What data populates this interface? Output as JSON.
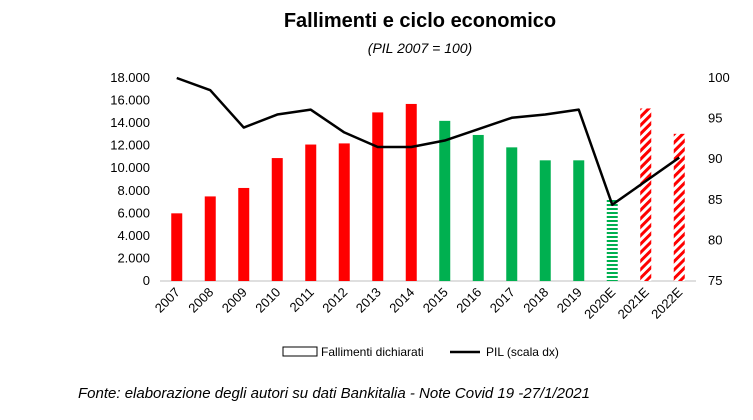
{
  "chart_data": {
    "type": "bar",
    "title": "Fallimenti e ciclo economico",
    "subtitle": "(PIL 2007 = 100)",
    "categories": [
      "2007",
      "2008",
      "2009",
      "2010",
      "2011",
      "2012",
      "2013",
      "2014",
      "2015",
      "2016",
      "2017",
      "2018",
      "2019",
      "2020E",
      "2021E",
      "2022E"
    ],
    "series": [
      {
        "name": "Fallimenti dichiarati",
        "kind": "bar",
        "axis": "left",
        "values": [
          6000,
          7500,
          8250,
          10900,
          12100,
          12200,
          14950,
          15700,
          14200,
          12950,
          11850,
          10700,
          10700,
          7250,
          15300,
          13050
        ],
        "colors": [
          "#ff0000",
          "#ff0000",
          "#ff0000",
          "#ff0000",
          "#ff0000",
          "#ff0000",
          "#ff0000",
          "#ff0000",
          "#00b050",
          "#00b050",
          "#00b050",
          "#00b050",
          "#00b050",
          "#00b050",
          "#ff0000",
          "#ff0000"
        ],
        "patterns": [
          "solid",
          "solid",
          "solid",
          "solid",
          "solid",
          "solid",
          "solid",
          "solid",
          "solid",
          "solid",
          "solid",
          "solid",
          "solid",
          "horizontal-stripes",
          "diagonal-stripes",
          "diagonal-stripes"
        ]
      },
      {
        "name": "PIL (scala dx)",
        "kind": "line",
        "axis": "right",
        "color": "#000000",
        "values": [
          100,
          98.5,
          93.9,
          95.5,
          96.1,
          93.3,
          91.5,
          91.5,
          92.3,
          93.7,
          95.1,
          95.5,
          96.1,
          84.4,
          87.3,
          90.2
        ]
      }
    ],
    "y_left": {
      "ylim": [
        0,
        18000
      ],
      "ticks": [
        0,
        2000,
        4000,
        6000,
        8000,
        10000,
        12000,
        14000,
        16000,
        18000
      ],
      "tick_labels": [
        "0",
        "2.000",
        "4.000",
        "6.000",
        "8.000",
        "10.000",
        "12.000",
        "14.000",
        "16.000",
        "18.000"
      ]
    },
    "y_right": {
      "ylim": [
        75,
        100
      ],
      "ticks": [
        75,
        80,
        85,
        90,
        95,
        100
      ],
      "tick_labels": [
        "75",
        "80",
        "85",
        "90",
        "95",
        "100"
      ]
    },
    "grid": false,
    "legend_position": "bottom",
    "legend": [
      {
        "label": "Fallimenti dichiarati",
        "symbol": "hollow-box"
      },
      {
        "label": "PIL (scala dx)",
        "symbol": "line"
      }
    ]
  },
  "footer": {
    "source": "Fonte: elaborazione degli autori su dati Bankitalia - Note Covid 19 -27/1/2021"
  }
}
